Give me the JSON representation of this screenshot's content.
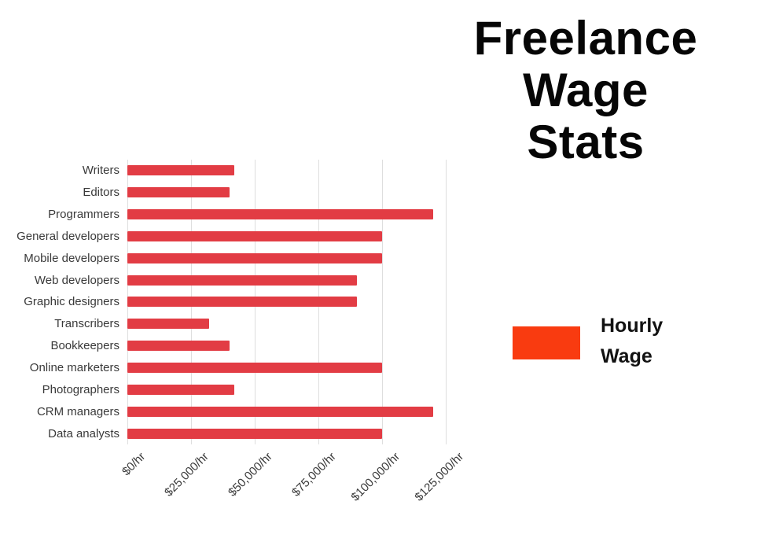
{
  "page": {
    "background": "#ffffff"
  },
  "title": {
    "text": "Freelance Wage Stats",
    "lines": [
      "Freelance",
      "Wage",
      "Stats"
    ]
  },
  "legend": {
    "label": "Hourly Wage",
    "swatch_color": "#f93b10"
  },
  "chart_data": {
    "type": "bar",
    "orientation": "horizontal",
    "title": "Freelance Wage Stats",
    "categories": [
      "Writers",
      "Editors",
      "Programmers",
      "General developers",
      "Mobile developers",
      "Web developers",
      "Graphic designers",
      "Transcribers",
      "Bookkeepers",
      "Online marketers",
      "Photographers",
      "CRM managers",
      "Data analysts"
    ],
    "series": [
      {
        "name": "Hourly Wage",
        "values": [
          42000,
          40000,
          120000,
          100000,
          100000,
          90000,
          90000,
          32000,
          40000,
          100000,
          42000,
          120000,
          100000
        ]
      }
    ],
    "xlim": [
      0,
      125000
    ],
    "x_ticks": [
      {
        "label": "$0/hr",
        "value": 0
      },
      {
        "label": "$25,000/hr",
        "value": 25000
      },
      {
        "label": "$50,000/hr",
        "value": 50000
      },
      {
        "label": "$75,000/hr",
        "value": 75000
      },
      {
        "label": "$100,000/hr",
        "value": 100000
      },
      {
        "label": "$125,000/hr",
        "value": 125000
      }
    ],
    "grid": "vertical-gridlines",
    "gridline_color": "#dedede",
    "label_color": "#3a3a3a",
    "bar_color": "#e23c44",
    "legend_position": "right-middle"
  }
}
